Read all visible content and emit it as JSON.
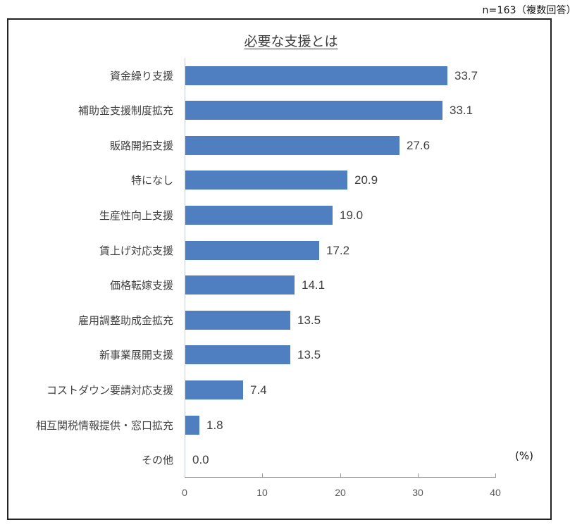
{
  "note": "n=163（複数回答）",
  "chart_data": {
    "type": "bar",
    "orientation": "horizontal",
    "title": "必要な支援とは",
    "xlabel": "",
    "ylabel": "",
    "unit_label": "(%)",
    "xlim": [
      0,
      40
    ],
    "x_ticks": [
      "0",
      "10",
      "20",
      "30",
      "40"
    ],
    "grid": false,
    "legend": null,
    "bar_color": "#4f7fc0",
    "categories": [
      "資金繰り支援",
      "補助金支援制度拡充",
      "販路開拓支援",
      "特になし",
      "生産性向上支援",
      "賃上げ対応支援",
      "価格転嫁支援",
      "雇用調整助成金拡充",
      "新事業展開支援",
      "コストダウン要請対応支援",
      "相互関税情報提供・窓口拡充",
      "その他"
    ],
    "values": [
      33.7,
      33.1,
      27.6,
      20.9,
      19.0,
      17.2,
      14.1,
      13.5,
      13.5,
      7.4,
      1.8,
      0.0
    ],
    "value_labels": [
      "33.7",
      "33.1",
      "27.6",
      "20.9",
      "19.0",
      "17.2",
      "14.1",
      "13.5",
      "13.5",
      "7.4",
      "1.8",
      "0.0"
    ]
  }
}
